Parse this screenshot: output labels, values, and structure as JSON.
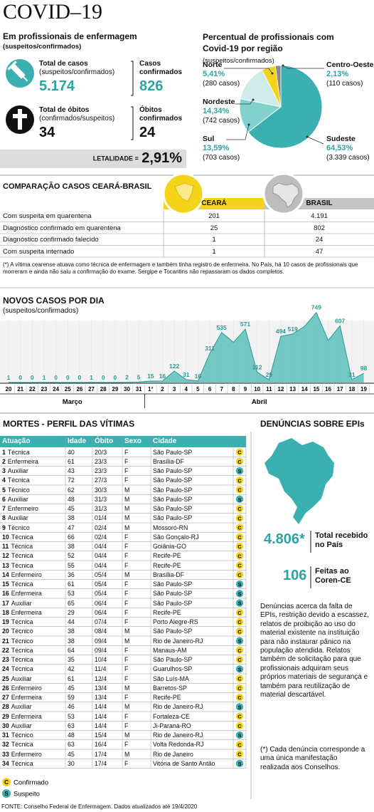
{
  "header": {
    "title": "COVID–19",
    "subtitle": "Em profissionais de enfermagem",
    "note": "(suspeitos/confirmados)"
  },
  "stats": {
    "total_cases": {
      "label": "Total de casos",
      "sublabel": "(suspeitos/confirmados)",
      "value": "5.174"
    },
    "confirmed_cases": {
      "label": "Casos confirmados",
      "value": "826"
    },
    "total_deaths": {
      "label": "Total de óbitos",
      "sublabel": "(confirmados/suspeitos)",
      "value": "34"
    },
    "confirmed_deaths": {
      "label": "Óbitos confirmados",
      "value": "24"
    },
    "lethality": {
      "label": "LETALIDADE =",
      "value": "2,91%"
    }
  },
  "chart_data": [
    {
      "type": "pie",
      "title": "Percentual de profissionais com Covid-19 por região",
      "subtitle": "(suspeitos/confirmados)",
      "categories": [
        "Sudeste",
        "Sul",
        "Nordeste",
        "Norte",
        "Centro-Oeste"
      ],
      "values": [
        64.53,
        13.59,
        14.34,
        5.41,
        2.13
      ],
      "value_labels": [
        "64,53%",
        "13,59%",
        "14,34%",
        "5,41%",
        "2,13%"
      ],
      "case_labels": [
        "(3.339 casos)",
        "(703 casos)",
        "(742 casos)",
        "(280 casos)",
        "(110 casos)"
      ],
      "colors": [
        "#3bb0b0",
        "#83d1cd",
        "#cfecea",
        "#f4d41b",
        "#8a8a8a"
      ]
    },
    {
      "type": "area",
      "title": "NOVOS CASOS POR DIA",
      "subtitle": "(suspeitos/confirmados)",
      "categories": [
        "20",
        "21",
        "22",
        "23",
        "24",
        "25",
        "26",
        "27",
        "28",
        "29",
        "30",
        "31",
        "1°",
        "2",
        "3",
        "4",
        "5",
        "6",
        "7",
        "8",
        "9",
        "10",
        "11",
        "12",
        "13",
        "14",
        "15",
        "16",
        "17",
        "18",
        "19"
      ],
      "values": [
        1,
        0,
        0,
        1,
        0,
        0,
        0,
        1,
        0,
        0,
        2,
        5,
        15,
        16,
        122,
        31,
        16,
        311,
        535,
        430,
        571,
        112,
        29,
        494,
        519,
        600,
        749,
        450,
        607,
        31,
        98
      ],
      "value_labels": [
        "1",
        "0",
        "0",
        "1",
        "0",
        "0",
        "0",
        "1",
        "0",
        "0",
        "2",
        "5",
        "15",
        "16",
        "122",
        "31",
        "16",
        "311",
        "535",
        null,
        "571",
        "112",
        "29",
        "494",
        "519",
        null,
        "749",
        null,
        "607",
        "31",
        "98"
      ],
      "months": [
        "Março",
        "Abril"
      ],
      "color": "#5cbfba",
      "ylim": [
        0,
        800
      ]
    }
  ],
  "comparison": {
    "title": "COMPARAÇÃO CASOS CEARÁ-BRASIL",
    "columns": [
      "CEARÁ",
      "BRASIL"
    ],
    "rows": [
      [
        "Com suspeita em quarentena",
        "201",
        "4.191"
      ],
      [
        "Diagnóstico confirmado em quarentena",
        "25",
        "802"
      ],
      [
        "Diagnóstico confirmado falecido",
        "1",
        "24"
      ],
      [
        "Com suspeita internado",
        "1",
        "47"
      ]
    ],
    "note": "(*) A vítima cearense atuava como técnica de enfermagem e também tinha registro de enfermeira. No País, há 10 casos de profissionais que morreram e ainda não saiu a confirmação do exame. Sergipe e Tocantins não repassaram os dados completos."
  },
  "deaths": {
    "title": "MORTES - PERFIL DAS VÍTIMAS",
    "columns": [
      "Atuação",
      "Idade",
      "Óbito",
      "Sexo",
      "Cidade"
    ],
    "rows": [
      [
        "1",
        "Técnica",
        "40",
        "20/3",
        "F",
        "São Paulo-SP",
        "C"
      ],
      [
        "2",
        "Enfermeira",
        "61",
        "23/3",
        "F",
        "Brasília-DF",
        "C"
      ],
      [
        "3",
        "Auxiliar",
        "43",
        "23/3",
        "F",
        "São Paulo-SP",
        "S"
      ],
      [
        "4",
        "Técnica",
        "72",
        "27/3",
        "F",
        "São Paulo-SP",
        "C"
      ],
      [
        "5",
        "Técnico",
        "62",
        "30/3",
        "M",
        "São Paulo-SP",
        "C"
      ],
      [
        "6",
        "Auxiliar",
        "48",
        "31/3",
        "M",
        "São Paulo-SP",
        "S"
      ],
      [
        "7",
        "Enfermeiro",
        "45",
        "31/3",
        "M",
        "São Paulo-SP",
        "C"
      ],
      [
        "8",
        "Auxiliar",
        "38",
        "01/4",
        "M",
        "São Paulo-SP",
        "C"
      ],
      [
        "9",
        "Técnico",
        "47",
        "02/4",
        "M",
        "Mossoró-RN",
        "C"
      ],
      [
        "10",
        "Técnica",
        "66",
        "02/4",
        "F",
        "São Gonçalo-RJ",
        "C"
      ],
      [
        "11",
        "Técnica",
        "38",
        "04/4",
        "F",
        "Goiânia-GO",
        "C"
      ],
      [
        "12",
        "Técnica",
        "52",
        "04/4",
        "F",
        "Recife-PE",
        "C"
      ],
      [
        "13",
        "Técnica",
        "55",
        "04/4",
        "F",
        "Recife-PE",
        "C"
      ],
      [
        "14",
        "Enfermeiro",
        "36",
        "05/4",
        "M",
        "Brasília-DF",
        "C"
      ],
      [
        "15",
        "Técnica",
        "61",
        "05/4",
        "F",
        "São Paulo-SP",
        "S"
      ],
      [
        "16",
        "Enfermeira",
        "53",
        "05/4",
        "F",
        "São Paulo-SP",
        "S"
      ],
      [
        "17",
        "Auxiliar",
        "65",
        "06/4",
        "F",
        "São Paulo-SP",
        "S"
      ],
      [
        "18",
        "Enfermeira",
        "29",
        "06/4",
        "F",
        "Recife-PE",
        "C"
      ],
      [
        "19",
        "Técnica",
        "44",
        "07/4",
        "F",
        "Porto Alegre-RS",
        "C"
      ],
      [
        "20",
        "Técnico",
        "38",
        "08/4",
        "M",
        "São Paulo-SP",
        "C"
      ],
      [
        "21",
        "Técnico",
        "38",
        "09/4",
        "M",
        "Rio de Janeiro-RJ",
        "S"
      ],
      [
        "22",
        "Técnica",
        "64",
        "09/4",
        "F",
        "Manaus-AM",
        "C"
      ],
      [
        "23",
        "Técnica",
        "35",
        "10/4",
        "F",
        "São Paulo-SP",
        "C"
      ],
      [
        "24",
        "Técnica",
        "42",
        "11/4",
        "F",
        "Guarulhos-SP",
        "S"
      ],
      [
        "25",
        "Auxiliar",
        "61",
        "12/4",
        "F",
        "São Luís-MA",
        "C"
      ],
      [
        "26",
        "Enfermeiro",
        "45",
        "13/4",
        "M",
        "Barretos-SP",
        "C"
      ],
      [
        "27",
        "Enfermeira",
        "59",
        "13/4",
        "F",
        "Recife-PE",
        "C"
      ],
      [
        "28",
        "Auxiliar",
        "46",
        "14/4",
        "M",
        "Rio de Janeiro-RJ",
        "S"
      ],
      [
        "29",
        "Enfermeira",
        "53",
        "14/4",
        "F",
        "Fortaleza-CE",
        "C"
      ],
      [
        "30",
        "Auxiliar",
        "63",
        "14/4",
        "F",
        "Ji-Paraná-RO",
        "C"
      ],
      [
        "31",
        "Técnico",
        "48",
        "15/4",
        "M",
        "Rio de Janeiro-RJ",
        "S"
      ],
      [
        "32",
        "Técnica",
        "63",
        "16/4",
        "F",
        "Volta Redonda-RJ",
        "C"
      ],
      [
        "33",
        "Enfermeiro",
        "45",
        "17/4",
        "M",
        "Rio de Janeiro",
        "C"
      ],
      [
        "34",
        "Técnica",
        "30",
        "17/4",
        "F",
        "Vitória de Santo Antão",
        "S"
      ]
    ],
    "legend": [
      {
        "key": "C",
        "label": "Confirmado",
        "color": "#f4d41b"
      },
      {
        "key": "S",
        "label": "Suspeito",
        "color": "#3bb0b0"
      }
    ]
  },
  "epi": {
    "title": "DENÚNCIAS SOBRE EPIs",
    "total": {
      "value": "4.806*",
      "label": "Total recebido no País"
    },
    "coren": {
      "value": "106",
      "label": "Feitas ao Coren-CE"
    },
    "text": "Denúncias acerca da falta de EPIs, restrição devido a escassez, relatos de proibição ao uso do material existente na instituição para não instaurar pânico na população atendida. Relatos também de solicitação para que profissionais adquiram seus próprios materiais de segurança e também para reutilização de material descartável.",
    "footnote": "(*) Cada denúncia corresponde a uma única manifestação realizada aos Conselhos."
  },
  "source": "FONTE: Conselho Federal de Enfermagem. Dados atualizados até 19/4/2020"
}
